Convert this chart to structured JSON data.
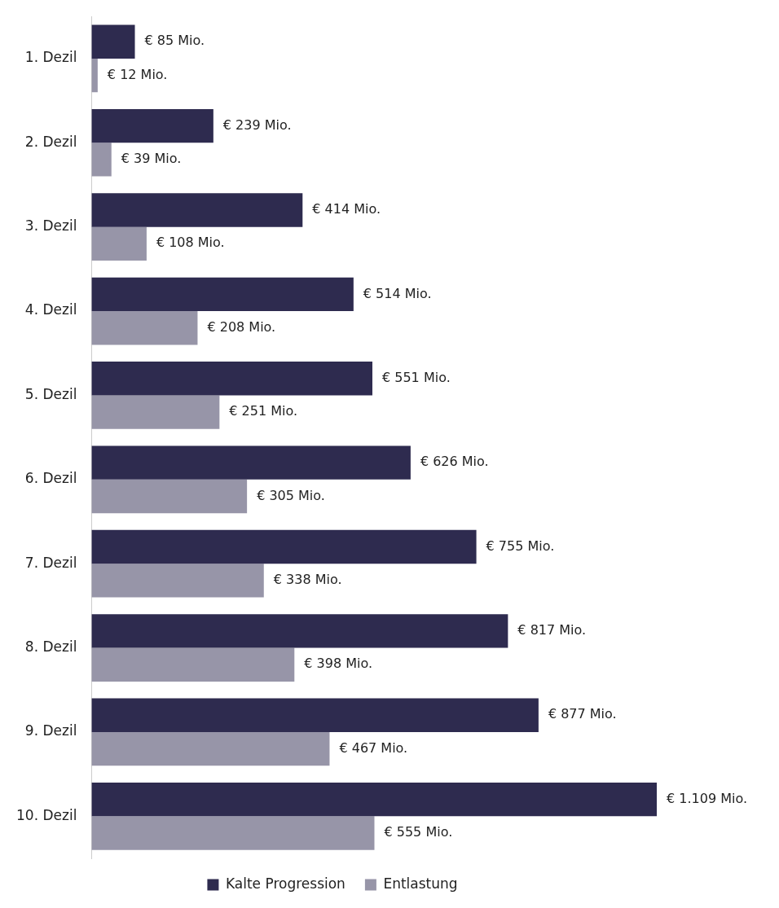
{
  "chart_data": {
    "type": "bar",
    "orientation": "horizontal",
    "categories": [
      "1. Dezil",
      "2. Dezil",
      "3. Dezil",
      "4. Dezil",
      "5. Dezil",
      "6. Dezil",
      "7. Dezil",
      "8. Dezil",
      "9. Dezil",
      "10. Dezil"
    ],
    "series": [
      {
        "name": "Kalte Progression",
        "color": "#2e2b4f",
        "values": [
          85,
          239,
          414,
          514,
          551,
          626,
          755,
          817,
          877,
          1109
        ],
        "value_labels": [
          "€ 85 Mio.",
          "€ 239 Mio.",
          "€ 414 Mio.",
          "€ 514 Mio.",
          "€ 551 Mio.",
          "€ 626 Mio.",
          "€ 755 Mio.",
          "€ 817 Mio.",
          "€ 877 Mio.",
          "€ 1.109 Mio."
        ]
      },
      {
        "name": "Entlastung",
        "color": "#9795a8",
        "values": [
          12,
          39,
          108,
          208,
          251,
          305,
          338,
          398,
          467,
          555
        ],
        "value_labels": [
          "€ 12 Mio.",
          "€ 39 Mio.",
          "€ 108 Mio.",
          "€ 208 Mio.",
          "€ 251 Mio.",
          "€ 305 Mio.",
          "€ 338 Mio.",
          "€ 398 Mio.",
          "€ 467 Mio.",
          "€ 555 Mio."
        ]
      }
    ],
    "tick_labels": "y",
    "legend": "bottom"
  }
}
